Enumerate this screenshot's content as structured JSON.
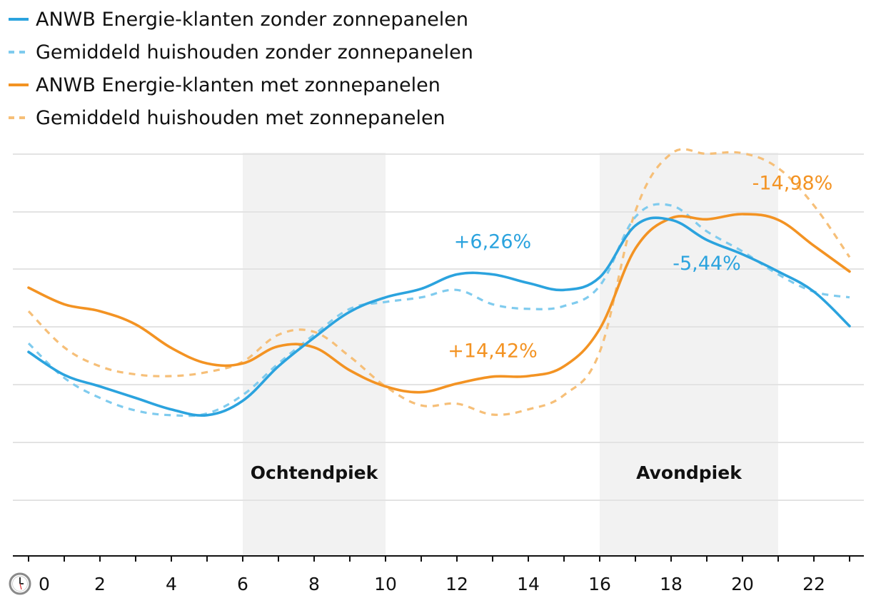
{
  "colors": {
    "blue": "#2ba3de",
    "blue_light": "#7fcbee",
    "orange": "#f39323",
    "orange_light": "#f6bf78",
    "band": "#f2f2f2",
    "grid": "#e3e3e3",
    "axis": "#111111"
  },
  "legend": [
    {
      "label": "ANWB Energie-klanten zonder zonnepanelen",
      "style": "solid",
      "color": "#2ba3de"
    },
    {
      "label": "Gemiddeld huishouden zonder zonnepanelen",
      "style": "dashed",
      "color": "#7fcbee"
    },
    {
      "label": "ANWB Energie-klanten met zonnepanelen",
      "style": "solid",
      "color": "#f39323"
    },
    {
      "label": "Gemiddeld huishouden met zonnepanelen",
      "style": "dashed",
      "color": "#f6bf78"
    }
  ],
  "axis": {
    "x_icon": "clock-icon",
    "x_ticks": [
      "0",
      "2",
      "4",
      "6",
      "8",
      "10",
      "12",
      "14",
      "16",
      "18",
      "20",
      "22"
    ]
  },
  "bands": [
    {
      "label": "Ochtendpiek",
      "from": 6,
      "to": 10
    },
    {
      "label": "Avondpiek",
      "from": 16,
      "to": 21
    }
  ],
  "annotations": [
    {
      "text": "+6,26%",
      "x": 13,
      "y": 53.6,
      "color": "#2ba3de"
    },
    {
      "text": "-5,44%",
      "x": 19,
      "y": 49.8,
      "color": "#2ba3de"
    },
    {
      "text": "+14,42%",
      "x": 13,
      "y": 34.6,
      "color": "#f39323"
    },
    {
      "text": "-14,98%",
      "x": 21.4,
      "y": 63.8,
      "color": "#f39323"
    }
  ],
  "chart_data": {
    "type": "line",
    "xlabel": "",
    "ylabel": "",
    "xlim": [
      0,
      23
    ],
    "ylim": [
      0,
      70
    ],
    "grid": true,
    "legend_position": "top-left",
    "x": [
      0,
      1,
      2,
      3,
      4,
      5,
      6,
      7,
      8,
      9,
      10,
      11,
      12,
      13,
      14,
      15,
      16,
      17,
      18,
      19,
      20,
      21,
      22,
      23
    ],
    "series": [
      {
        "name": "ANWB Energie-klanten zonder zonnepanelen",
        "style": "solid",
        "color": "#2ba3de",
        "values": [
          35.5,
          31.5,
          29.5,
          27.5,
          25.5,
          24.5,
          27,
          33,
          38,
          42.5,
          45,
          46.5,
          49,
          49,
          47.5,
          46.3,
          48.5,
          57.5,
          58.5,
          55,
          52.5,
          49.5,
          46,
          40
        ]
      },
      {
        "name": "Gemiddeld huishouden zonder zonnepanelen",
        "style": "dashed",
        "color": "#7fcbee",
        "values": [
          37,
          31,
          27.5,
          25.3,
          24.5,
          24.8,
          28,
          33.5,
          38.5,
          43,
          44.2,
          45,
          46.3,
          43.8,
          43,
          43.5,
          47,
          59,
          61,
          56.5,
          53,
          49,
          46,
          45
        ]
      },
      {
        "name": "ANWB Energie-klanten met zonnepanelen",
        "style": "solid",
        "color": "#f39323",
        "values": [
          46.7,
          43.8,
          42.6,
          40.3,
          36.2,
          33.5,
          33.5,
          36.5,
          36.3,
          32.3,
          29.5,
          28.5,
          30,
          31.2,
          31.3,
          33,
          39.5,
          53.5,
          58.8,
          58.6,
          59.5,
          58.5,
          54,
          49.5
        ]
      },
      {
        "name": "Gemiddeld huishouden met zonnepanelen",
        "style": "dashed",
        "color": "#f6bf78",
        "values": [
          42.6,
          36.3,
          33,
          31.6,
          31.3,
          32,
          33.8,
          38.5,
          39,
          34.7,
          29.5,
          26.2,
          26.5,
          24.6,
          25.5,
          28,
          35.5,
          60,
          70,
          70,
          70.1,
          67.5,
          61,
          52
        ]
      }
    ]
  }
}
